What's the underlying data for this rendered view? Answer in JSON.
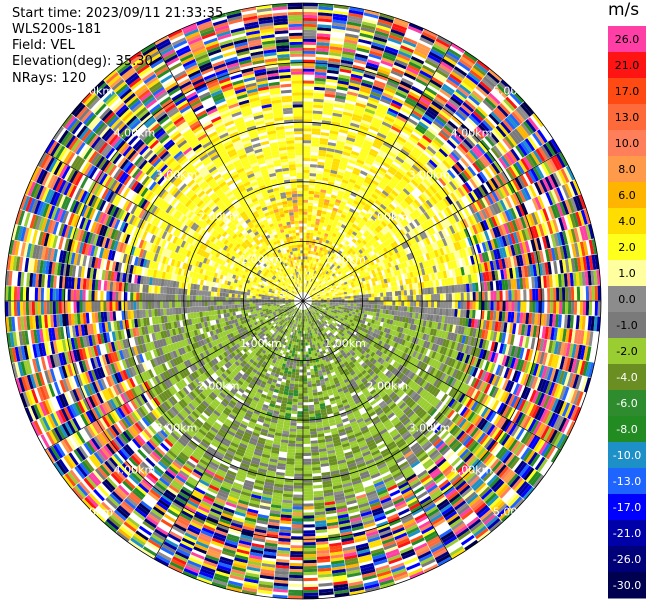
{
  "info": {
    "start_time": "Start time: 2023/09/11 21:33:35",
    "instrument": "WLS200s-181",
    "field": "Field: VEL",
    "elevation": "Elevation(deg): 35.30",
    "nrays": "NRays: 120"
  },
  "chart_data": {
    "type": "heatmap",
    "projection": "polar-ppi",
    "field": "VEL",
    "units": "m/s",
    "nrays": 120,
    "range_rings_km": [
      1.0,
      2.0,
      3.0,
      4.0,
      5.0
    ],
    "ring_labels": [
      "1.00km",
      "2.00km",
      "3.00km",
      "4.00km",
      "5.00km"
    ],
    "colorbar": {
      "ticks": [
        "26.0",
        "21.0",
        "17.0",
        "13.0",
        "10.0",
        "8.0",
        "6.0",
        "4.0",
        "2.0",
        "1.0",
        "0.0",
        "-1.0",
        "-2.0",
        "-4.0",
        "-6.0",
        "-8.0",
        "-10.0",
        "-13.0",
        "-17.0",
        "-21.0",
        "-26.0",
        "-30.0"
      ],
      "colors": [
        "#ff3fa6",
        "#ff1414",
        "#ff4a14",
        "#ff6a3a",
        "#ff7f5a",
        "#ff9a4a",
        "#ffb400",
        "#ffdd00",
        "#ffff1e",
        "#ffffa0",
        "#8c8c8c",
        "#7a7a7a",
        "#9acd32",
        "#6b8e23",
        "#2e8b2e",
        "#228b22",
        "#1e90c8",
        "#1e64ff",
        "#0000ff",
        "#0000a8",
        "#000078",
        "#000050"
      ]
    }
  }
}
